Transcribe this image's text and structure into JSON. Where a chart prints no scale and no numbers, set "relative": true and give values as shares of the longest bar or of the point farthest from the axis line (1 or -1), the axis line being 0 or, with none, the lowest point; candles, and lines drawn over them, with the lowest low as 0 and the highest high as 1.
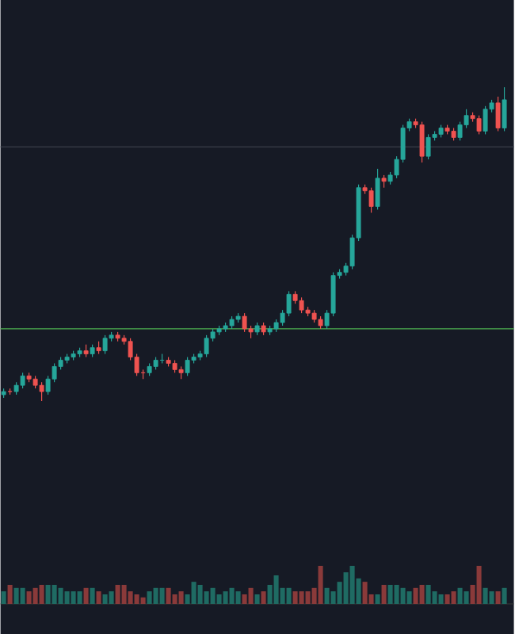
{
  "chart_data": [
    {
      "type": "candlestick",
      "relative": true,
      "tick_labels": false,
      "categories": [
        null,
        null,
        null,
        null,
        null,
        null,
        null,
        null,
        null,
        null,
        null,
        null,
        null,
        null,
        null,
        null,
        null,
        null,
        null,
        null,
        null,
        null,
        null,
        null,
        null,
        null,
        null,
        null,
        null,
        null,
        null,
        null,
        null,
        null,
        null,
        null,
        null,
        null,
        null,
        null,
        null,
        null,
        null,
        null,
        null,
        null,
        null,
        null,
        null,
        null,
        null,
        null,
        null,
        null,
        null,
        null,
        null,
        null,
        null,
        null,
        null,
        null,
        null,
        null,
        null,
        null,
        null,
        null,
        null,
        null,
        null,
        null,
        null,
        null,
        null,
        null,
        null,
        null,
        null,
        null
      ],
      "ohlc": [
        [
          0.02,
          0.04,
          0.01,
          0.03
        ],
        [
          0.03,
          0.04,
          0.02,
          0.03
        ],
        [
          0.03,
          0.06,
          0.02,
          0.05
        ],
        [
          0.05,
          0.09,
          0.04,
          0.08
        ],
        [
          0.08,
          0.09,
          0.06,
          0.07
        ],
        [
          0.07,
          0.08,
          0.04,
          0.05
        ],
        [
          0.05,
          0.06,
          0,
          0.03
        ],
        [
          0.03,
          0.08,
          0.02,
          0.07
        ],
        [
          0.07,
          0.12,
          0.06,
          0.11
        ],
        [
          0.11,
          0.14,
          0.1,
          0.13
        ],
        [
          0.13,
          0.15,
          0.12,
          0.14
        ],
        [
          0.14,
          0.16,
          0.13,
          0.15
        ],
        [
          0.15,
          0.17,
          0.14,
          0.16
        ],
        [
          0.16,
          0.18,
          0.14,
          0.15
        ],
        [
          0.15,
          0.18,
          0.14,
          0.17
        ],
        [
          0.17,
          0.19,
          0.15,
          0.16
        ],
        [
          0.16,
          0.21,
          0.15,
          0.2
        ],
        [
          0.2,
          0.22,
          0.19,
          0.21
        ],
        [
          0.21,
          0.22,
          0.19,
          0.2
        ],
        [
          0.2,
          0.21,
          0.18,
          0.19
        ],
        [
          0.19,
          0.2,
          0.13,
          0.14
        ],
        [
          0.14,
          0.15,
          0.08,
          0.09
        ],
        [
          0.09,
          0.1,
          0.07,
          0.09
        ],
        [
          0.09,
          0.12,
          0.08,
          0.11
        ],
        [
          0.11,
          0.14,
          0.1,
          0.13
        ],
        [
          0.13,
          0.15,
          0.12,
          0.13
        ],
        [
          0.13,
          0.14,
          0.11,
          0.12
        ],
        [
          0.12,
          0.13,
          0.09,
          0.1
        ],
        [
          0.1,
          0.11,
          0.07,
          0.09
        ],
        [
          0.09,
          0.14,
          0.08,
          0.13
        ],
        [
          0.13,
          0.15,
          0.12,
          0.14
        ],
        [
          0.14,
          0.16,
          0.13,
          0.15
        ],
        [
          0.15,
          0.21,
          0.14,
          0.2
        ],
        [
          0.2,
          0.23,
          0.19,
          0.22
        ],
        [
          0.22,
          0.24,
          0.21,
          0.23
        ],
        [
          0.23,
          0.25,
          0.22,
          0.24
        ],
        [
          0.24,
          0.27,
          0.23,
          0.26
        ],
        [
          0.26,
          0.28,
          0.25,
          0.27
        ],
        [
          0.27,
          0.28,
          0.22,
          0.23
        ],
        [
          0.23,
          0.24,
          0.2,
          0.22
        ],
        [
          0.22,
          0.25,
          0.21,
          0.24
        ],
        [
          0.24,
          0.25,
          0.21,
          0.22
        ],
        [
          0.22,
          0.24,
          0.21,
          0.23
        ],
        [
          0.23,
          0.26,
          0.22,
          0.25
        ],
        [
          0.25,
          0.29,
          0.24,
          0.28
        ],
        [
          0.28,
          0.35,
          0.27,
          0.34
        ],
        [
          0.34,
          0.35,
          0.31,
          0.32
        ],
        [
          0.32,
          0.33,
          0.28,
          0.29
        ],
        [
          0.29,
          0.3,
          0.27,
          0.28
        ],
        [
          0.28,
          0.29,
          0.25,
          0.26
        ],
        [
          0.26,
          0.27,
          0.23,
          0.24
        ],
        [
          0.24,
          0.29,
          0.23,
          0.28
        ],
        [
          0.28,
          0.41,
          0.27,
          0.4
        ],
        [
          0.4,
          0.42,
          0.39,
          0.41
        ],
        [
          0.41,
          0.44,
          0.4,
          0.43
        ],
        [
          0.43,
          0.53,
          0.42,
          0.52
        ],
        [
          0.52,
          0.69,
          0.51,
          0.68
        ],
        [
          0.68,
          0.69,
          0.66,
          0.67
        ],
        [
          0.67,
          0.68,
          0.6,
          0.62
        ],
        [
          0.62,
          0.74,
          0.61,
          0.71
        ],
        [
          0.71,
          0.72,
          0.68,
          0.7
        ],
        [
          0.7,
          0.73,
          0.69,
          0.72
        ],
        [
          0.72,
          0.78,
          0.71,
          0.77
        ],
        [
          0.77,
          0.88,
          0.76,
          0.87
        ],
        [
          0.87,
          0.9,
          0.86,
          0.89
        ],
        [
          0.89,
          0.9,
          0.87,
          0.88
        ],
        [
          0.88,
          0.89,
          0.76,
          0.78
        ],
        [
          0.78,
          0.85,
          0.77,
          0.84
        ],
        [
          0.84,
          0.86,
          0.83,
          0.85
        ],
        [
          0.85,
          0.88,
          0.84,
          0.87
        ],
        [
          0.87,
          0.88,
          0.85,
          0.86
        ],
        [
          0.86,
          0.87,
          0.83,
          0.84
        ],
        [
          0.84,
          0.89,
          0.83,
          0.88
        ],
        [
          0.88,
          0.93,
          0.87,
          0.91
        ],
        [
          0.91,
          0.92,
          0.89,
          0.9
        ],
        [
          0.9,
          0.91,
          0.85,
          0.86
        ],
        [
          0.86,
          0.94,
          0.85,
          0.93
        ],
        [
          0.93,
          0.96,
          0.92,
          0.95
        ],
        [
          0.95,
          0.97,
          0.86,
          0.87
        ],
        [
          0.87,
          1,
          0.86,
          0.96
        ]
      ],
      "colors": [
        "#26a69a",
        "#ef5350",
        "#26a69a",
        "#26a69a",
        "#ef5350",
        "#ef5350",
        "#ef5350",
        "#26a69a",
        "#26a69a",
        "#26a69a",
        "#26a69a",
        "#26a69a",
        "#26a69a",
        "#ef5350",
        "#26a69a",
        "#ef5350",
        "#26a69a",
        "#26a69a",
        "#ef5350",
        "#ef5350",
        "#ef5350",
        "#ef5350",
        "#ef5350",
        "#26a69a",
        "#26a69a",
        "#26a69a",
        "#ef5350",
        "#ef5350",
        "#ef5350",
        "#26a69a",
        "#26a69a",
        "#26a69a",
        "#26a69a",
        "#26a69a",
        "#26a69a",
        "#26a69a",
        "#26a69a",
        "#26a69a",
        "#ef5350",
        "#ef5350",
        "#26a69a",
        "#ef5350",
        "#26a69a",
        "#26a69a",
        "#26a69a",
        "#26a69a",
        "#ef5350",
        "#ef5350",
        "#ef5350",
        "#ef5350",
        "#ef5350",
        "#26a69a",
        "#26a69a",
        "#26a69a",
        "#26a69a",
        "#26a69a",
        "#26a69a",
        "#ef5350",
        "#ef5350",
        "#26a69a",
        "#ef5350",
        "#26a69a",
        "#26a69a",
        "#26a69a",
        "#26a69a",
        "#ef5350",
        "#ef5350",
        "#26a69a",
        "#26a69a",
        "#26a69a",
        "#ef5350",
        "#ef5350",
        "#26a69a",
        "#26a69a",
        "#ef5350",
        "#ef5350",
        "#26a69a",
        "#26a69a",
        "#ef5350",
        "#26a69a"
      ],
      "ref_lines": [
        {
          "axis": "y",
          "value": 0.81,
          "color": "#3b3f4a"
        },
        {
          "axis": "y",
          "value": 0.23,
          "color": "#4caf50"
        }
      ]
    },
    {
      "type": "bar",
      "relative": true,
      "tick_labels": false,
      "categories": [
        null,
        null,
        null,
        null,
        null,
        null,
        null,
        null,
        null,
        null,
        null,
        null,
        null,
        null,
        null,
        null,
        null,
        null,
        null,
        null,
        null,
        null,
        null,
        null,
        null,
        null,
        null,
        null,
        null,
        null,
        null,
        null,
        null,
        null,
        null,
        null,
        null,
        null,
        null,
        null,
        null,
        null,
        null,
        null,
        null,
        null,
        null,
        null,
        null,
        null,
        null,
        null,
        null,
        null,
        null,
        null,
        null,
        null,
        null,
        null,
        null,
        null,
        null,
        null,
        null,
        null,
        null,
        null,
        null,
        null,
        null,
        null,
        null,
        null,
        null,
        null,
        null,
        null,
        null,
        null
      ],
      "values": [
        0.33,
        0.5,
        0.42,
        0.42,
        0.33,
        0.42,
        0.5,
        0.5,
        0.5,
        0.42,
        0.33,
        0.33,
        0.33,
        0.42,
        0.42,
        0.33,
        0.25,
        0.33,
        0.5,
        0.5,
        0.33,
        0.25,
        0.17,
        0.33,
        0.42,
        0.42,
        0.42,
        0.25,
        0.33,
        0.25,
        0.58,
        0.5,
        0.33,
        0.42,
        0.25,
        0.33,
        0.42,
        0.33,
        0.25,
        0.42,
        0.25,
        0.33,
        0.5,
        0.75,
        0.42,
        0.42,
        0.33,
        0.33,
        0.33,
        0.42,
        1,
        0.42,
        0.33,
        0.58,
        0.83,
        1,
        0.67,
        0.58,
        0.25,
        0.25,
        0.5,
        0.5,
        0.5,
        0.42,
        0.33,
        0.42,
        0.5,
        0.5,
        0.33,
        0.25,
        0.25,
        0.33,
        0.42,
        0.33,
        0.5,
        1,
        0.42,
        0.33,
        0.33,
        0.42
      ],
      "colors": [
        "#1f6b63",
        "#8a3a3a",
        "#1f6b63",
        "#1f6b63",
        "#8a3a3a",
        "#8a3a3a",
        "#8a3a3a",
        "#1f6b63",
        "#1f6b63",
        "#1f6b63",
        "#1f6b63",
        "#1f6b63",
        "#1f6b63",
        "#8a3a3a",
        "#1f6b63",
        "#8a3a3a",
        "#1f6b63",
        "#1f6b63",
        "#8a3a3a",
        "#8a3a3a",
        "#8a3a3a",
        "#8a3a3a",
        "#8a3a3a",
        "#1f6b63",
        "#1f6b63",
        "#1f6b63",
        "#8a3a3a",
        "#8a3a3a",
        "#8a3a3a",
        "#1f6b63",
        "#1f6b63",
        "#1f6b63",
        "#1f6b63",
        "#1f6b63",
        "#1f6b63",
        "#1f6b63",
        "#1f6b63",
        "#1f6b63",
        "#8a3a3a",
        "#8a3a3a",
        "#1f6b63",
        "#8a3a3a",
        "#1f6b63",
        "#1f6b63",
        "#1f6b63",
        "#1f6b63",
        "#8a3a3a",
        "#8a3a3a",
        "#8a3a3a",
        "#8a3a3a",
        "#8a3a3a",
        "#1f6b63",
        "#1f6b63",
        "#1f6b63",
        "#1f6b63",
        "#1f6b63",
        "#1f6b63",
        "#8a3a3a",
        "#8a3a3a",
        "#1f6b63",
        "#8a3a3a",
        "#1f6b63",
        "#1f6b63",
        "#1f6b63",
        "#1f6b63",
        "#8a3a3a",
        "#8a3a3a",
        "#1f6b63",
        "#1f6b63",
        "#1f6b63",
        "#8a3a3a",
        "#8a3a3a",
        "#1f6b63",
        "#1f6b63",
        "#8a3a3a",
        "#8a3a3a",
        "#1f6b63",
        "#1f6b63",
        "#8a3a3a",
        "#1f6b63"
      ]
    }
  ]
}
